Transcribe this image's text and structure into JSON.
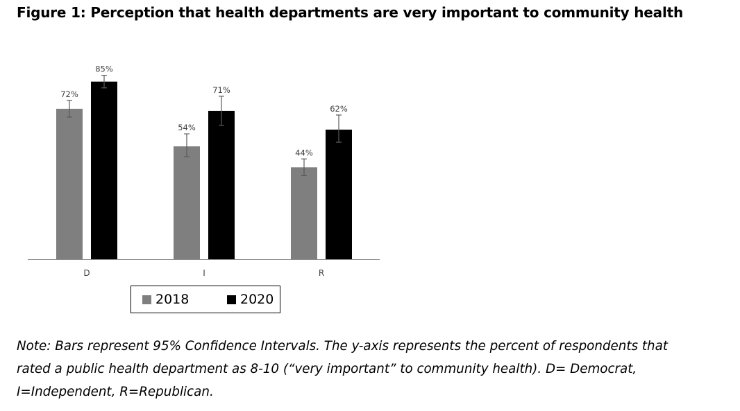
{
  "figure_title": "Figure 1: Perception that health departments are very important to community health",
  "chart_data": {
    "type": "bar",
    "categories": [
      "D",
      "I",
      "R"
    ],
    "series": [
      {
        "name": "2018",
        "color": "#7f7f7f",
        "values": [
          72,
          54,
          44
        ],
        "labels": [
          "72%",
          "54%",
          "44%"
        ],
        "ci": [
          [
            68,
            76
          ],
          [
            49,
            60
          ],
          [
            40,
            48
          ]
        ]
      },
      {
        "name": "2020",
        "color": "#000000",
        "values": [
          85,
          71,
          62
        ],
        "labels": [
          "85%",
          "71%",
          "62%"
        ],
        "ci": [
          [
            82,
            88
          ],
          [
            64,
            78
          ],
          [
            56,
            69
          ]
        ]
      }
    ],
    "ylim": [
      0,
      100
    ],
    "y_axis_visible": false,
    "grid": false,
    "legend_placement": "bottom",
    "xlabel": "",
    "ylabel": ""
  },
  "note_lines": [
    "Note: Bars represent 95% Confidence Intervals. The y-axis represents the percent of respondents that",
    "rated a public health department as 8-10 (“very important” to community health). D= Democrat,",
    "I=Independent, R=Republican."
  ]
}
